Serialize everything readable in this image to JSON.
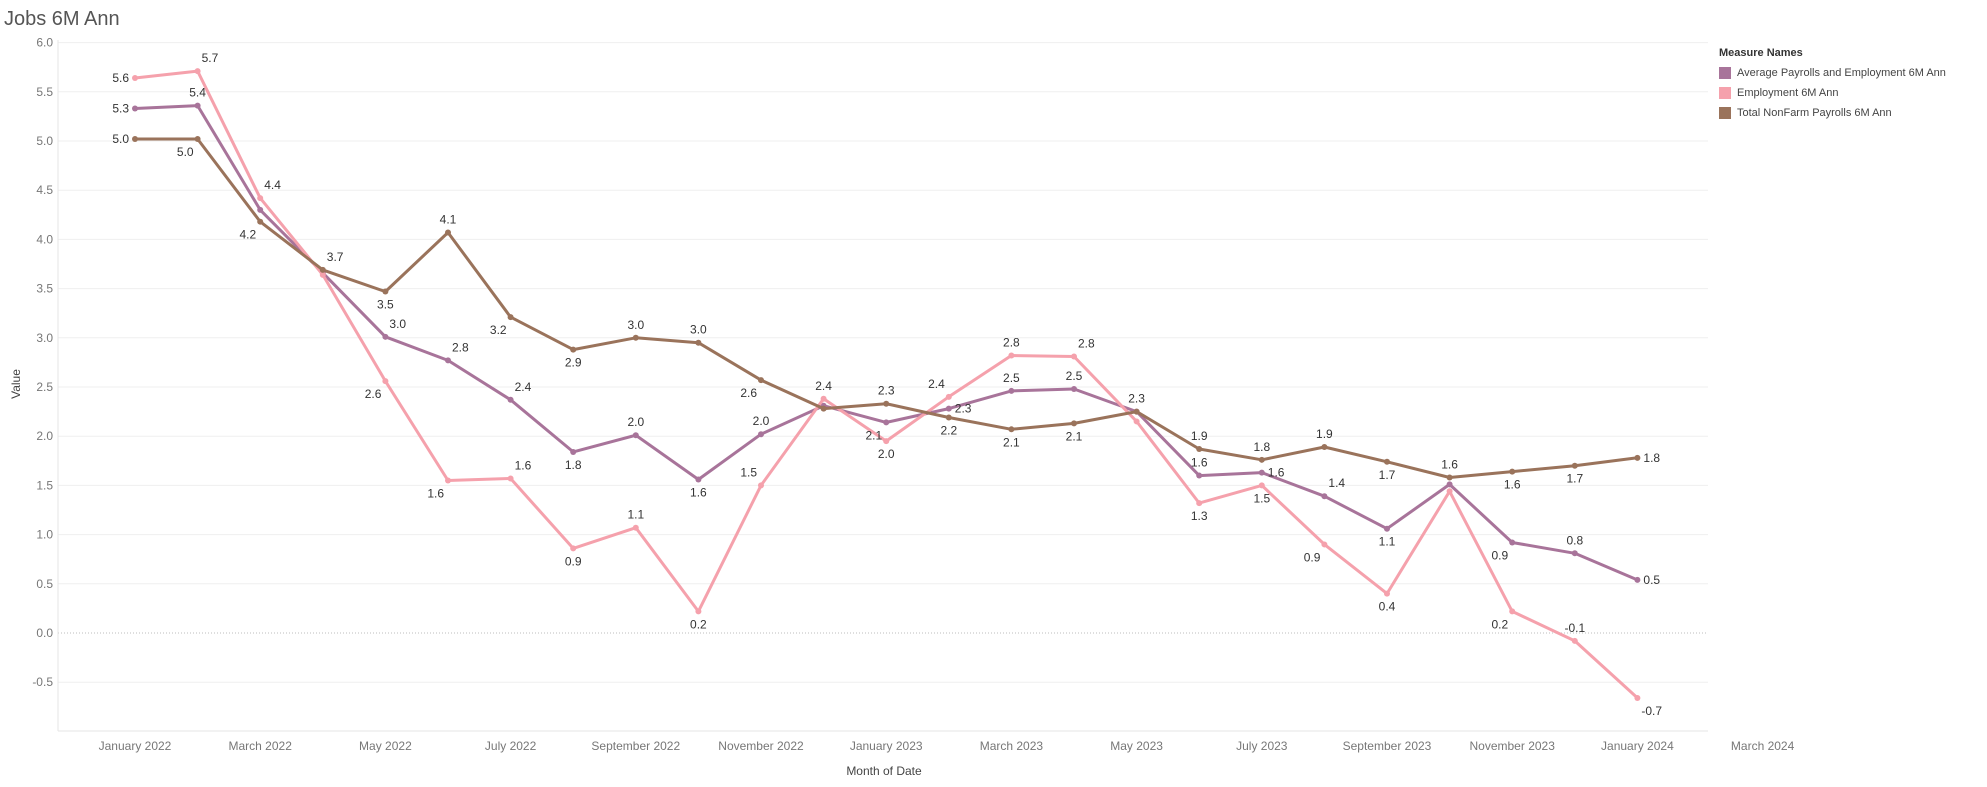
{
  "page": {
    "title": "Jobs 6M Ann"
  },
  "legend": {
    "title": "Measure Names",
    "items": [
      {
        "label": "Average Payrolls and Employment  6M Ann",
        "color": "#a8749a"
      },
      {
        "label": "Employment  6M Ann",
        "color": "#f5a1ac"
      },
      {
        "label": "Total NonFarm Payrolls 6M Ann",
        "color": "#9a735b"
      }
    ]
  },
  "chart_data": {
    "type": "line",
    "title": "Jobs 6M Ann",
    "xlabel": "Month of Date",
    "ylabel": "Value",
    "ylim": [
      -1.0,
      6.0
    ],
    "yticks": [
      6.0,
      5.5,
      5.0,
      4.5,
      4.0,
      3.5,
      3.0,
      2.5,
      2.0,
      1.5,
      1.0,
      0.5,
      0.0,
      -0.5
    ],
    "xtick_labels": [
      "January 2022",
      "March 2022",
      "May 2022",
      "July 2022",
      "September 2022",
      "November 2022",
      "January 2023",
      "March 2023",
      "May 2023",
      "July 2023",
      "September 2023",
      "November 2023",
      "January 2024",
      "March 2024"
    ],
    "categories": [
      "January 2022",
      "February 2022",
      "March 2022",
      "April 2022",
      "May 2022",
      "June 2022",
      "July 2022",
      "August 2022",
      "September 2022",
      "October 2022",
      "November 2022",
      "December 2022",
      "January 2023",
      "February 2023",
      "March 2023",
      "April 2023",
      "May 2023",
      "June 2023",
      "July 2023",
      "August 2023",
      "September 2023",
      "October 2023",
      "November 2023",
      "December 2023",
      "January 2024",
      "February 2024"
    ],
    "grid": "horizontal",
    "legend_position": "top-right",
    "series": [
      {
        "name": "Average Payrolls and Employment  6M Ann",
        "color": "#a8749a",
        "values": [
          5.33,
          5.36,
          4.3,
          3.66,
          3.01,
          2.77,
          2.37,
          1.84,
          2.01,
          1.56,
          2.02,
          2.31,
          2.14,
          2.28,
          2.46,
          2.48,
          2.25,
          1.6,
          1.63,
          1.39,
          1.06,
          1.51,
          0.92,
          0.81,
          0.54,
          null
        ],
        "labels": [
          "5.3",
          "5.4",
          "",
          "",
          "3.0",
          "2.8",
          "2.4",
          "1.8",
          "2.0",
          "1.6",
          "2.0",
          "",
          "2.1",
          "2.3",
          "2.5",
          "2.5",
          "",
          "1.6",
          "1.6",
          "1.4",
          "1.1",
          "",
          "0.9",
          "0.8",
          "0.5",
          ""
        ]
      },
      {
        "name": "Employment  6M Ann",
        "color": "#f5a1ac",
        "values": [
          5.64,
          5.71,
          4.42,
          3.64,
          2.56,
          1.55,
          1.57,
          0.86,
          1.07,
          0.22,
          1.5,
          2.38,
          1.95,
          2.4,
          2.82,
          2.81,
          2.15,
          1.32,
          1.5,
          0.9,
          0.4,
          1.44,
          0.22,
          -0.08,
          -0.66,
          null
        ],
        "labels": [
          "5.6",
          "5.7",
          "4.4",
          "",
          "2.6",
          "1.6",
          "1.6",
          "0.9",
          "1.1",
          "0.2",
          "1.5",
          "2.4",
          "2.0",
          "2.4",
          "2.8",
          "2.8",
          "",
          "1.3",
          "1.5",
          "0.9",
          "0.4",
          "",
          "0.2",
          "-0.1",
          "-0.7",
          ""
        ]
      },
      {
        "name": "Total NonFarm Payrolls 6M Ann",
        "color": "#9a735b",
        "values": [
          5.02,
          5.02,
          4.18,
          3.69,
          3.47,
          4.07,
          3.21,
          2.88,
          3.0,
          2.95,
          2.57,
          2.28,
          2.33,
          2.19,
          2.07,
          2.13,
          2.25,
          1.87,
          1.76,
          1.89,
          1.74,
          1.58,
          1.64,
          1.7,
          1.78,
          null
        ],
        "labels": [
          "5.0",
          "5.0",
          "4.2",
          "3.7",
          "3.5",
          "4.1",
          "3.2",
          "2.9",
          "3.0",
          "3.0",
          "2.6",
          "",
          "2.3",
          "2.2",
          "2.1",
          "2.1",
          "2.3",
          "1.9",
          "1.8",
          "1.9",
          "1.7",
          "1.6",
          "1.6",
          "1.7",
          "1.8",
          ""
        ]
      }
    ],
    "label_positions": {
      "Average Payrolls and Employment  6M Ann": [
        "left",
        "above",
        "",
        "",
        "above-right",
        "above-right",
        "above-right",
        "below",
        "above",
        "below",
        "above",
        "",
        "below-left",
        "right",
        "above",
        "above",
        "",
        "above",
        "right",
        "above-right",
        "below",
        "",
        "below-left",
        "above",
        "right",
        ""
      ],
      "Employment  6M Ann": [
        "left",
        "above-right",
        "above-right",
        "",
        "below-left",
        "below-left",
        "above-right",
        "below",
        "above",
        "below",
        "above-left",
        "above",
        "below",
        "above-left",
        "above",
        "above-right",
        "",
        "below",
        "below",
        "below-left",
        "below",
        "",
        "below-left",
        "above",
        "below-right",
        ""
      ],
      "Total NonFarm Payrolls 6M Ann": [
        "left",
        "below-left",
        "below-left",
        "above-right",
        "below",
        "above",
        "below-left",
        "below",
        "above",
        "above",
        "below-left",
        "",
        "above",
        "below",
        "below",
        "below",
        "above",
        "above",
        "above",
        "above",
        "below",
        "above",
        "below",
        "below",
        "right",
        ""
      ]
    }
  }
}
